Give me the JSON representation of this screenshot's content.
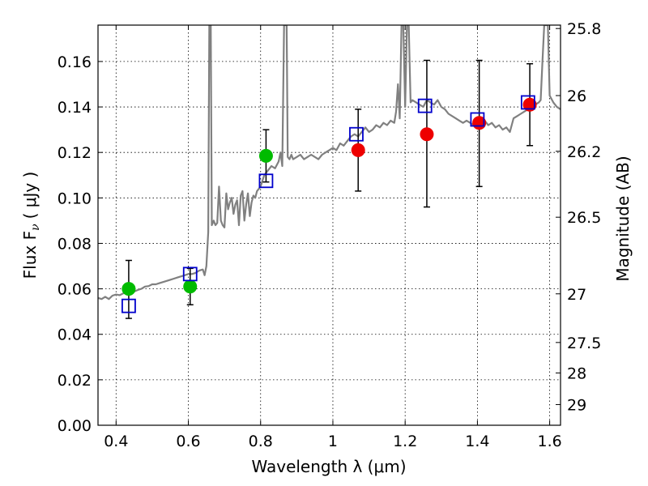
{
  "chart_data": {
    "type": "scatter",
    "xlabel": "Wavelength  λ (μm)",
    "ylabel": "Flux  F",
    "ylabel_sub": "ν",
    "ylabel_unit": "( μJy )",
    "y2label": "Magnitude (AB)",
    "xlim": [
      0.35,
      1.63
    ],
    "ylim": [
      0.0,
      0.176
    ],
    "x_ticks": [
      0.4,
      0.6,
      0.8,
      1.0,
      1.2,
      1.4,
      1.6
    ],
    "x_tick_labels": [
      "0.4",
      "0.6",
      "0.8",
      "1",
      "1.2",
      "1.4",
      "1.6"
    ],
    "y_ticks": [
      0.0,
      0.02,
      0.04,
      0.06,
      0.08,
      0.1,
      0.12,
      0.14,
      0.16
    ],
    "y_tick_labels": [
      "0.00",
      "0.02",
      "0.04",
      "0.06",
      "0.08",
      "0.10",
      "0.12",
      "0.14",
      "0.16"
    ],
    "y2_ticks": [
      {
        "label": "25.8",
        "flux": 0.1745
      },
      {
        "label": "26",
        "flux": 0.145
      },
      {
        "label": "26.2",
        "flux": 0.1205
      },
      {
        "label": "26.5",
        "flux": 0.0915
      },
      {
        "label": "27",
        "flux": 0.0578
      },
      {
        "label": "27.5",
        "flux": 0.0364
      },
      {
        "label": "28",
        "flux": 0.023
      },
      {
        "label": "29",
        "flux": 0.0091
      }
    ],
    "grid": true,
    "series": [
      {
        "kind": "line",
        "color": "#808080",
        "points": [
          [
            0.35,
            0.056
          ],
          [
            0.36,
            0.0555
          ],
          [
            0.37,
            0.0565
          ],
          [
            0.38,
            0.0555
          ],
          [
            0.39,
            0.057
          ],
          [
            0.4,
            0.0575
          ],
          [
            0.41,
            0.0572
          ],
          [
            0.42,
            0.058
          ],
          [
            0.43,
            0.0585
          ],
          [
            0.44,
            0.059
          ],
          [
            0.45,
            0.0588
          ],
          [
            0.46,
            0.0595
          ],
          [
            0.47,
            0.06
          ],
          [
            0.48,
            0.061
          ],
          [
            0.49,
            0.0612
          ],
          [
            0.5,
            0.062
          ],
          [
            0.51,
            0.062
          ],
          [
            0.52,
            0.0625
          ],
          [
            0.53,
            0.063
          ],
          [
            0.54,
            0.0635
          ],
          [
            0.55,
            0.064
          ],
          [
            0.56,
            0.0645
          ],
          [
            0.57,
            0.065
          ],
          [
            0.58,
            0.0655
          ],
          [
            0.59,
            0.066
          ],
          [
            0.6,
            0.0665
          ],
          [
            0.61,
            0.0665
          ],
          [
            0.62,
            0.067
          ],
          [
            0.63,
            0.068
          ],
          [
            0.64,
            0.0685
          ],
          [
            0.645,
            0.066
          ],
          [
            0.65,
            0.07
          ],
          [
            0.655,
            0.085
          ],
          [
            0.658,
            0.176
          ],
          [
            0.662,
            0.176
          ],
          [
            0.665,
            0.088
          ],
          [
            0.67,
            0.09
          ],
          [
            0.675,
            0.088
          ],
          [
            0.68,
            0.089
          ],
          [
            0.685,
            0.105
          ],
          [
            0.69,
            0.09
          ],
          [
            0.695,
            0.088
          ],
          [
            0.7,
            0.087
          ],
          [
            0.705,
            0.102
          ],
          [
            0.71,
            0.095
          ],
          [
            0.715,
            0.098
          ],
          [
            0.72,
            0.1
          ],
          [
            0.725,
            0.093
          ],
          [
            0.73,
            0.097
          ],
          [
            0.735,
            0.099
          ],
          [
            0.74,
            0.088
          ],
          [
            0.745,
            0.101
          ],
          [
            0.75,
            0.103
          ],
          [
            0.755,
            0.09
          ],
          [
            0.76,
            0.097
          ],
          [
            0.765,
            0.102
          ],
          [
            0.77,
            0.092
          ],
          [
            0.775,
            0.098
          ],
          [
            0.78,
            0.101
          ],
          [
            0.785,
            0.1
          ],
          [
            0.79,
            0.103
          ],
          [
            0.8,
            0.105
          ],
          [
            0.81,
            0.11
          ],
          [
            0.82,
            0.112
          ],
          [
            0.83,
            0.114
          ],
          [
            0.84,
            0.113
          ],
          [
            0.85,
            0.116
          ],
          [
            0.855,
            0.12
          ],
          [
            0.86,
            0.114
          ],
          [
            0.865,
            0.176
          ],
          [
            0.872,
            0.176
          ],
          [
            0.875,
            0.118
          ],
          [
            0.88,
            0.117
          ],
          [
            0.885,
            0.119
          ],
          [
            0.89,
            0.117
          ],
          [
            0.9,
            0.118
          ],
          [
            0.91,
            0.119
          ],
          [
            0.92,
            0.117
          ],
          [
            0.93,
            0.118
          ],
          [
            0.94,
            0.119
          ],
          [
            0.95,
            0.118
          ],
          [
            0.96,
            0.117
          ],
          [
            0.97,
            0.119
          ],
          [
            0.98,
            0.12
          ],
          [
            0.99,
            0.121
          ],
          [
            1.0,
            0.122
          ],
          [
            1.01,
            0.121
          ],
          [
            1.02,
            0.124
          ],
          [
            1.03,
            0.123
          ],
          [
            1.04,
            0.125
          ],
          [
            1.05,
            0.127
          ],
          [
            1.06,
            0.128
          ],
          [
            1.07,
            0.127
          ],
          [
            1.08,
            0.129
          ],
          [
            1.09,
            0.131
          ],
          [
            1.1,
            0.129
          ],
          [
            1.11,
            0.13
          ],
          [
            1.12,
            0.132
          ],
          [
            1.13,
            0.131
          ],
          [
            1.14,
            0.133
          ],
          [
            1.15,
            0.132
          ],
          [
            1.16,
            0.134
          ],
          [
            1.17,
            0.133
          ],
          [
            1.175,
            0.138
          ],
          [
            1.18,
            0.15
          ],
          [
            1.185,
            0.135
          ],
          [
            1.19,
            0.176
          ],
          [
            1.195,
            0.176
          ],
          [
            1.2,
            0.14
          ],
          [
            1.205,
            0.176
          ],
          [
            1.21,
            0.176
          ],
          [
            1.215,
            0.142
          ],
          [
            1.22,
            0.143
          ],
          [
            1.23,
            0.142
          ],
          [
            1.24,
            0.141
          ],
          [
            1.25,
            0.14
          ],
          [
            1.26,
            0.143
          ],
          [
            1.27,
            0.142
          ],
          [
            1.28,
            0.141
          ],
          [
            1.29,
            0.143
          ],
          [
            1.3,
            0.14
          ],
          [
            1.31,
            0.139
          ],
          [
            1.32,
            0.137
          ],
          [
            1.33,
            0.136
          ],
          [
            1.34,
            0.135
          ],
          [
            1.35,
            0.134
          ],
          [
            1.36,
            0.133
          ],
          [
            1.37,
            0.134
          ],
          [
            1.38,
            0.133
          ],
          [
            1.39,
            0.132
          ],
          [
            1.4,
            0.134
          ],
          [
            1.41,
            0.135
          ],
          [
            1.42,
            0.134
          ],
          [
            1.43,
            0.132
          ],
          [
            1.44,
            0.133
          ],
          [
            1.45,
            0.131
          ],
          [
            1.46,
            0.132
          ],
          [
            1.47,
            0.13
          ],
          [
            1.48,
            0.131
          ],
          [
            1.49,
            0.129
          ],
          [
            1.5,
            0.135
          ],
          [
            1.51,
            0.136
          ],
          [
            1.52,
            0.137
          ],
          [
            1.53,
            0.138
          ],
          [
            1.54,
            0.139
          ],
          [
            1.55,
            0.14
          ],
          [
            1.56,
            0.141
          ],
          [
            1.57,
            0.142
          ],
          [
            1.575,
            0.143
          ],
          [
            1.58,
            0.16
          ],
          [
            1.585,
            0.176
          ],
          [
            1.595,
            0.176
          ],
          [
            1.6,
            0.145
          ],
          [
            1.61,
            0.142
          ],
          [
            1.62,
            0.14
          ],
          [
            1.63,
            0.139
          ]
        ]
      },
      {
        "kind": "markers",
        "shape": "circle",
        "color": "#00bb00",
        "points": [
          {
            "x": 0.435,
            "y": 0.06,
            "err_lo": 0.047,
            "err_hi": 0.0725
          },
          {
            "x": 0.605,
            "y": 0.061,
            "err_lo": 0.053,
            "err_hi": 0.069
          },
          {
            "x": 0.815,
            "y": 0.1185,
            "err_lo": 0.107,
            "err_hi": 0.13
          }
        ]
      },
      {
        "kind": "markers",
        "shape": "circle",
        "color": "#ee0000",
        "points": [
          {
            "x": 1.07,
            "y": 0.121,
            "err_lo": 0.103,
            "err_hi": 0.139
          },
          {
            "x": 1.26,
            "y": 0.128,
            "err_lo": 0.096,
            "err_hi": 0.1605
          },
          {
            "x": 1.405,
            "y": 0.133,
            "err_lo": 0.105,
            "err_hi": 0.1605
          },
          {
            "x": 1.545,
            "y": 0.141,
            "err_lo": 0.123,
            "err_hi": 0.159
          }
        ]
      },
      {
        "kind": "markers",
        "shape": "open-square",
        "color": "#0000cc",
        "points": [
          {
            "x": 0.435,
            "y": 0.0525
          },
          {
            "x": 0.605,
            "y": 0.0665
          },
          {
            "x": 0.815,
            "y": 0.1075
          },
          {
            "x": 1.065,
            "y": 0.128
          },
          {
            "x": 1.255,
            "y": 0.1405
          },
          {
            "x": 1.4,
            "y": 0.1345
          },
          {
            "x": 1.54,
            "y": 0.142
          }
        ]
      }
    ]
  }
}
